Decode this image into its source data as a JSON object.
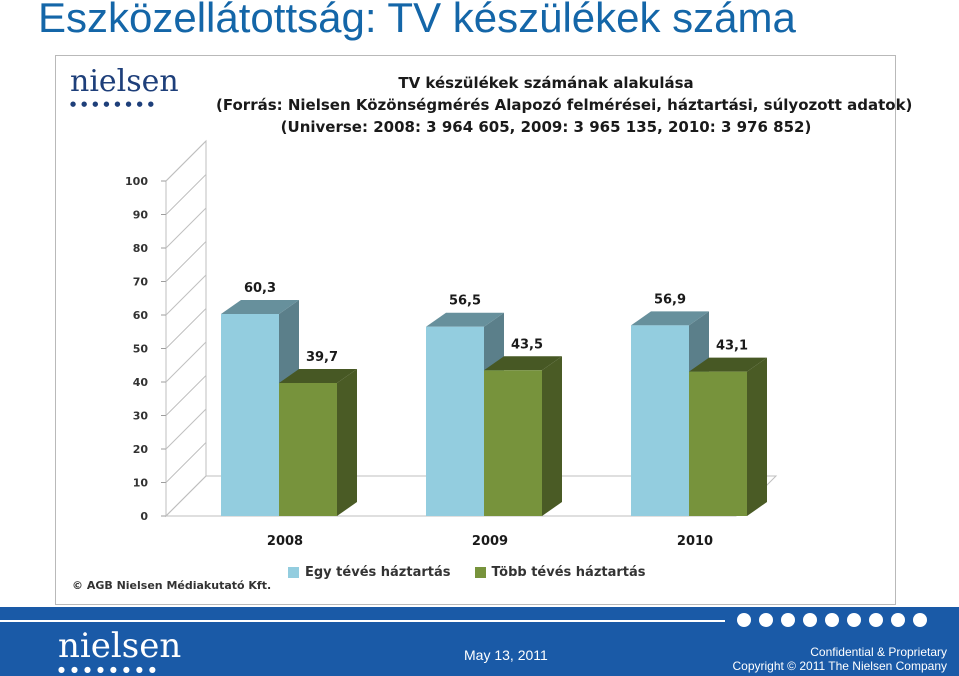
{
  "slide": {
    "title": "Eszközellátottság: TV készülékek száma"
  },
  "chart_logo": {
    "text": "nielsen"
  },
  "chart_data": {
    "type": "bar",
    "title": "TV készülékek számának alakulása",
    "subtitle_lines": [
      "(Forrás: Nielsen Közönségmérés Alapozó felmérései, háztartási, súlyozott adatok)",
      "(Universe: 2008: 3 964 605, 2009: 3 965 135, 2010: 3 976 852)"
    ],
    "categories": [
      "2008",
      "2009",
      "2010"
    ],
    "series": [
      {
        "name": "Egy tévés háztartás",
        "values": [
          60.3,
          56.5,
          56.9
        ],
        "labels": [
          "60,3",
          "56,5",
          "56,9"
        ],
        "color": "#93cddf"
      },
      {
        "name": "Több tévés háztartás",
        "values": [
          39.7,
          43.5,
          43.1
        ],
        "labels": [
          "39,7",
          "43,5",
          "43,1"
        ],
        "color": "#77933c"
      }
    ],
    "ylim": [
      0,
      100
    ],
    "yticks": [
      "0",
      "10",
      "20",
      "30",
      "40",
      "50",
      "60",
      "70",
      "80",
      "90",
      "100"
    ],
    "grid": false,
    "legend_position": "bottom",
    "style": "3d-clustered-column"
  },
  "chart_footer": {
    "copyright": "© AGB Nielsen Médiakutató Kft."
  },
  "footer": {
    "logo_text": "nielsen",
    "date": "May 13, 2011",
    "confidential": "Confidential & Proprietary",
    "copyright": "Copyright © 2011 The Nielsen Company"
  }
}
